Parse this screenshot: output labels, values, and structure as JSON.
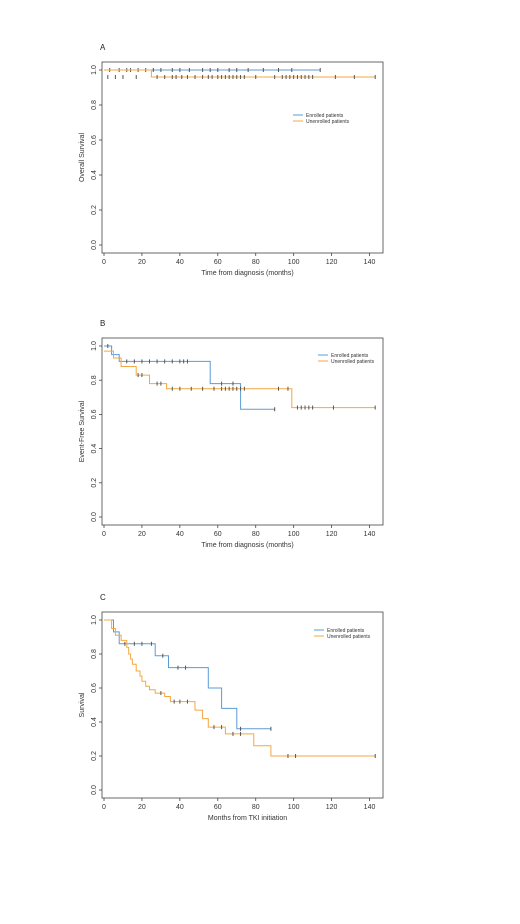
{
  "chart_data": [
    {
      "type": "line",
      "panel_label": "A",
      "xlabel": "Time from diagnosis (months)",
      "ylabel": "Overall Survival",
      "xlim": [
        0,
        145
      ],
      "ylim": [
        0,
        1.0
      ],
      "x_ticks": [
        0,
        20,
        40,
        60,
        80,
        100,
        120,
        140
      ],
      "y_ticks": [
        0.0,
        0.2,
        0.4,
        0.6,
        0.8,
        1.0
      ],
      "legend_position": "right",
      "series": [
        {
          "name": "Enrolled patients",
          "color": "#5b9bd5",
          "steps": [
            [
              0,
              1.0
            ],
            [
              114,
              1.0
            ]
          ],
          "censored": [
            [
              3,
              1.0
            ],
            [
              8,
              1.0
            ],
            [
              12,
              1.0
            ],
            [
              14,
              1.0
            ],
            [
              18,
              1.0
            ],
            [
              22,
              1.0
            ],
            [
              26,
              1.0
            ],
            [
              30,
              1.0
            ],
            [
              36,
              1.0
            ],
            [
              40,
              1.0
            ],
            [
              45,
              1.0
            ],
            [
              52,
              1.0
            ],
            [
              56,
              1.0
            ],
            [
              60,
              1.0
            ],
            [
              66,
              1.0
            ],
            [
              70,
              1.0
            ],
            [
              76,
              1.0
            ],
            [
              84,
              1.0
            ],
            [
              92,
              1.0
            ],
            [
              99,
              1.0
            ],
            [
              114,
              1.0
            ]
          ]
        },
        {
          "name": "Unenrolled patients",
          "color": "#f4a742",
          "steps": [
            [
              0,
              1.0
            ],
            [
              25,
              1.0
            ],
            [
              25,
              0.96
            ],
            [
              143,
              0.96
            ]
          ],
          "censored": [
            [
              2,
              0.96
            ],
            [
              6,
              0.96
            ],
            [
              10,
              0.96
            ],
            [
              17,
              0.96
            ],
            [
              28,
              0.96
            ],
            [
              32,
              0.96
            ],
            [
              36,
              0.96
            ],
            [
              38,
              0.96
            ],
            [
              41,
              0.96
            ],
            [
              44,
              0.96
            ],
            [
              48,
              0.96
            ],
            [
              52,
              0.96
            ],
            [
              55,
              0.96
            ],
            [
              57,
              0.96
            ],
            [
              60,
              0.96
            ],
            [
              62,
              0.96
            ],
            [
              64,
              0.96
            ],
            [
              66,
              0.96
            ],
            [
              68,
              0.96
            ],
            [
              70,
              0.96
            ],
            [
              72,
              0.96
            ],
            [
              74,
              0.96
            ],
            [
              80,
              0.96
            ],
            [
              90,
              0.96
            ],
            [
              94,
              0.96
            ],
            [
              96,
              0.96
            ],
            [
              98,
              0.96
            ],
            [
              100,
              0.96
            ],
            [
              102,
              0.96
            ],
            [
              104,
              0.96
            ],
            [
              106,
              0.96
            ],
            [
              108,
              0.96
            ],
            [
              110,
              0.96
            ],
            [
              122,
              0.96
            ],
            [
              132,
              0.96
            ],
            [
              143,
              0.96
            ]
          ]
        }
      ]
    },
    {
      "type": "line",
      "panel_label": "B",
      "xlabel": "Time from diagnosis (months)",
      "ylabel": "Event-Free Survival",
      "xlim": [
        0,
        145
      ],
      "ylim": [
        0,
        1.0
      ],
      "x_ticks": [
        0,
        20,
        40,
        60,
        80,
        100,
        120,
        140
      ],
      "y_ticks": [
        0.0,
        0.2,
        0.4,
        0.6,
        0.8,
        1.0
      ],
      "legend_position": "top-right",
      "series": [
        {
          "name": "Enrolled patients",
          "color": "#5b9bd5",
          "steps": [
            [
              0,
              1.0
            ],
            [
              4,
              1.0
            ],
            [
              4,
              0.95
            ],
            [
              8,
              0.95
            ],
            [
              8,
              0.91
            ],
            [
              56,
              0.91
            ],
            [
              56,
              0.78
            ],
            [
              72,
              0.78
            ],
            [
              72,
              0.63
            ],
            [
              90,
              0.63
            ]
          ],
          "censored": [
            [
              2,
              1.0
            ],
            [
              12,
              0.91
            ],
            [
              16,
              0.91
            ],
            [
              20,
              0.91
            ],
            [
              24,
              0.91
            ],
            [
              28,
              0.91
            ],
            [
              32,
              0.91
            ],
            [
              36,
              0.91
            ],
            [
              40,
              0.91
            ],
            [
              42,
              0.91
            ],
            [
              44,
              0.91
            ],
            [
              62,
              0.78
            ],
            [
              68,
              0.78
            ],
            [
              90,
              0.63
            ]
          ]
        },
        {
          "name": "Unenrolled patients",
          "color": "#f4a742",
          "steps": [
            [
              0,
              0.97
            ],
            [
              5,
              0.97
            ],
            [
              5,
              0.93
            ],
            [
              9,
              0.93
            ],
            [
              9,
              0.88
            ],
            [
              17,
              0.88
            ],
            [
              17,
              0.83
            ],
            [
              24,
              0.83
            ],
            [
              24,
              0.78
            ],
            [
              33,
              0.78
            ],
            [
              33,
              0.75
            ],
            [
              99,
              0.75
            ],
            [
              99,
              0.64
            ],
            [
              143,
              0.64
            ]
          ],
          "censored": [
            [
              18,
              0.83
            ],
            [
              20,
              0.83
            ],
            [
              28,
              0.78
            ],
            [
              30,
              0.78
            ],
            [
              36,
              0.75
            ],
            [
              40,
              0.75
            ],
            [
              46,
              0.75
            ],
            [
              52,
              0.75
            ],
            [
              58,
              0.75
            ],
            [
              62,
              0.75
            ],
            [
              64,
              0.75
            ],
            [
              66,
              0.75
            ],
            [
              68,
              0.75
            ],
            [
              70,
              0.75
            ],
            [
              72,
              0.75
            ],
            [
              74,
              0.75
            ],
            [
              92,
              0.75
            ],
            [
              97,
              0.75
            ],
            [
              102,
              0.64
            ],
            [
              104,
              0.64
            ],
            [
              106,
              0.64
            ],
            [
              108,
              0.64
            ],
            [
              110,
              0.64
            ],
            [
              121,
              0.64
            ],
            [
              143,
              0.64
            ]
          ]
        }
      ]
    },
    {
      "type": "line",
      "panel_label": "C",
      "xlabel": "Months from TKI initiation",
      "ylabel": "Survival",
      "xlim": [
        0,
        145
      ],
      "ylim": [
        0,
        1.0
      ],
      "x_ticks": [
        0,
        20,
        40,
        60,
        80,
        100,
        120,
        140
      ],
      "y_ticks": [
        0.0,
        0.2,
        0.4,
        0.6,
        0.8,
        1.0
      ],
      "legend_position": "top-right",
      "series": [
        {
          "name": "Enrolled patients",
          "color": "#5b9bd5",
          "steps": [
            [
              0,
              1.0
            ],
            [
              5,
              1.0
            ],
            [
              5,
              0.93
            ],
            [
              8,
              0.93
            ],
            [
              8,
              0.86
            ],
            [
              27,
              0.86
            ],
            [
              27,
              0.79
            ],
            [
              34,
              0.79
            ],
            [
              34,
              0.72
            ],
            [
              55,
              0.72
            ],
            [
              55,
              0.6
            ],
            [
              62,
              0.6
            ],
            [
              62,
              0.48
            ],
            [
              70,
              0.48
            ],
            [
              70,
              0.36
            ],
            [
              88,
              0.36
            ]
          ],
          "censored": [
            [
              11,
              0.86
            ],
            [
              16,
              0.86
            ],
            [
              20,
              0.86
            ],
            [
              25,
              0.86
            ],
            [
              31,
              0.79
            ],
            [
              39,
              0.72
            ],
            [
              43,
              0.72
            ],
            [
              72,
              0.36
            ],
            [
              88,
              0.36
            ]
          ]
        },
        {
          "name": "Unenrolled patients",
          "color": "#f4a742",
          "steps": [
            [
              0,
              1.0
            ],
            [
              4,
              1.0
            ],
            [
              4,
              0.95
            ],
            [
              6,
              0.95
            ],
            [
              6,
              0.91
            ],
            [
              9,
              0.91
            ],
            [
              9,
              0.88
            ],
            [
              12,
              0.88
            ],
            [
              12,
              0.84
            ],
            [
              13,
              0.84
            ],
            [
              13,
              0.8
            ],
            [
              14,
              0.8
            ],
            [
              14,
              0.77
            ],
            [
              15,
              0.77
            ],
            [
              15,
              0.74
            ],
            [
              17,
              0.74
            ],
            [
              17,
              0.7
            ],
            [
              19,
              0.7
            ],
            [
              19,
              0.67
            ],
            [
              20,
              0.67
            ],
            [
              20,
              0.64
            ],
            [
              22,
              0.64
            ],
            [
              22,
              0.61
            ],
            [
              24,
              0.61
            ],
            [
              24,
              0.59
            ],
            [
              27,
              0.59
            ],
            [
              27,
              0.57
            ],
            [
              32,
              0.57
            ],
            [
              32,
              0.55
            ],
            [
              35,
              0.55
            ],
            [
              35,
              0.52
            ],
            [
              48,
              0.52
            ],
            [
              48,
              0.47
            ],
            [
              52,
              0.47
            ],
            [
              52,
              0.42
            ],
            [
              55,
              0.42
            ],
            [
              55,
              0.37
            ],
            [
              64,
              0.37
            ],
            [
              64,
              0.33
            ],
            [
              79,
              0.33
            ],
            [
              79,
              0.26
            ],
            [
              88,
              0.26
            ],
            [
              88,
              0.2
            ],
            [
              143,
              0.2
            ]
          ],
          "censored": [
            [
              30,
              0.57
            ],
            [
              37,
              0.52
            ],
            [
              40,
              0.52
            ],
            [
              44,
              0.52
            ],
            [
              58,
              0.37
            ],
            [
              62,
              0.37
            ],
            [
              68,
              0.33
            ],
            [
              72,
              0.33
            ],
            [
              97,
              0.2
            ],
            [
              101,
              0.2
            ],
            [
              143,
              0.2
            ]
          ]
        }
      ]
    }
  ]
}
